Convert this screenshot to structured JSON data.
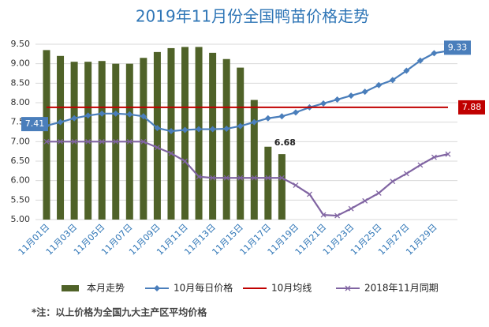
{
  "chart_data": {
    "type": "bar",
    "title": "2019年11月份全国鸭苗价格走势",
    "categories": [
      "11月01日",
      null,
      "11月03日",
      null,
      "11月05日",
      null,
      "11月07日",
      null,
      "11月09日",
      null,
      "11月11日",
      null,
      "11月13日",
      null,
      "11月15日",
      null,
      "11月17日",
      null,
      "11月19日",
      null,
      "11月21日",
      null,
      "11月23日",
      null,
      "11月25日",
      null,
      "11月27日",
      null,
      "11月29日",
      null
    ],
    "ylim": [
      5,
      9.5
    ],
    "yticks": [
      {
        "value": 5,
        "label": "5.00"
      },
      {
        "value": 5.5,
        "label": "5.50"
      },
      {
        "value": 6,
        "label": "6.00"
      },
      {
        "value": 6.5,
        "label": "6.50"
      },
      {
        "value": 7,
        "label": "7.00"
      },
      {
        "value": 7.5,
        "label": "7.50"
      },
      {
        "value": 8,
        "label": "8.00"
      },
      {
        "value": 8.5,
        "label": "8.50"
      },
      {
        "value": 9,
        "label": "9.00"
      },
      {
        "value": 9.5,
        "label": "9.50"
      }
    ],
    "grid": true,
    "legend": "bottom",
    "series": [
      {
        "name": "本月走势",
        "type": "bar",
        "color": "#4f6228",
        "values": [
          9.35,
          9.2,
          9.05,
          9.05,
          9.07,
          9.0,
          9.0,
          9.15,
          9.3,
          9.4,
          9.43,
          9.43,
          9.28,
          9.12,
          8.9,
          8.07,
          6.87,
          6.68,
          null,
          null,
          null,
          null,
          null,
          null,
          null,
          null,
          null,
          null,
          null,
          null
        ]
      },
      {
        "name": "10月每日价格",
        "type": "line",
        "marker": "diamond",
        "color": "#4a7ebb",
        "values": [
          7.41,
          7.5,
          7.6,
          7.67,
          7.72,
          7.72,
          7.7,
          7.65,
          7.35,
          7.27,
          7.3,
          7.32,
          7.32,
          7.33,
          7.4,
          7.5,
          7.6,
          7.65,
          7.75,
          7.88,
          7.98,
          8.08,
          8.18,
          8.28,
          8.45,
          8.58,
          8.82,
          9.08,
          9.27,
          9.33
        ]
      },
      {
        "name": "10月均线",
        "type": "line",
        "marker": "none",
        "color": "#c00000",
        "values": [
          7.88,
          7.88,
          7.88,
          7.88,
          7.88,
          7.88,
          7.88,
          7.88,
          7.88,
          7.88,
          7.88,
          7.88,
          7.88,
          7.88,
          7.88,
          7.88,
          7.88,
          7.88,
          7.88,
          7.88,
          7.88,
          7.88,
          7.88,
          7.88,
          7.88,
          7.88,
          7.88,
          7.88,
          7.88,
          7.88
        ]
      },
      {
        "name": "2018年11月同期",
        "type": "line",
        "marker": "x",
        "color": "#8064a2",
        "values": [
          7.0,
          7.0,
          7.0,
          7.0,
          7.0,
          7.0,
          7.0,
          7.0,
          6.85,
          6.7,
          6.5,
          6.1,
          6.07,
          6.07,
          6.07,
          6.07,
          6.07,
          6.07,
          5.88,
          5.65,
          5.12,
          5.1,
          5.28,
          5.48,
          5.68,
          5.98,
          6.18,
          6.4,
          6.6,
          6.68
        ]
      }
    ],
    "footnote": "*注：以上价格为全国九大主产区平均价格"
  }
}
